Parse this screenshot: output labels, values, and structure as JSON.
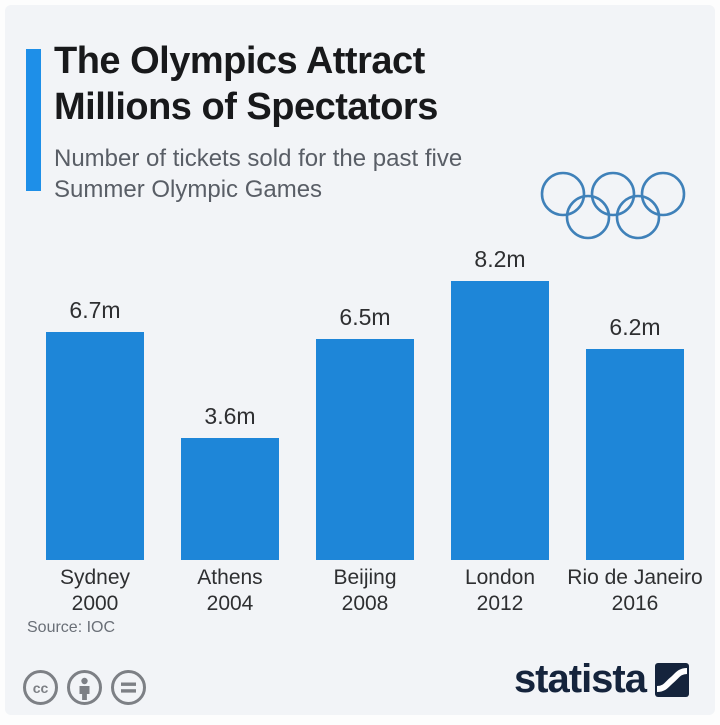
{
  "header": {
    "title_line1": "The Olympics Attract",
    "title_line2": "Millions of Spectators",
    "subtitle_line1": "Number of tickets sold for the past five",
    "subtitle_line2": "Summer Olympic Games",
    "decoration_icon": "olympic-rings-icon"
  },
  "chart_data": {
    "type": "bar",
    "title": "The Olympics Attract Millions of Spectators",
    "subtitle": "Number of tickets sold for the past five Summer Olympic Games",
    "categories": [
      {
        "city": "Sydney",
        "year": "2000"
      },
      {
        "city": "Athens",
        "year": "2004"
      },
      {
        "city": "Beijing",
        "year": "2008"
      },
      {
        "city": "London",
        "year": "2012"
      },
      {
        "city": "Rio de Janeiro",
        "year": "2016"
      }
    ],
    "values": [
      6.7,
      3.6,
      6.5,
      8.2,
      6.2
    ],
    "value_labels": [
      "6.7m",
      "3.6m",
      "6.5m",
      "8.2m",
      "6.2m"
    ],
    "unit": "million tickets sold",
    "ylim": [
      0,
      8.2
    ],
    "grid": "off",
    "axes": "none",
    "data_labels": "above-bars",
    "xlabel": "",
    "ylabel": ""
  },
  "footer": {
    "source": "Source: IOC",
    "license_icons": [
      "creative-commons-icon",
      "attribution-person-icon",
      "no-derivatives-equals-icon"
    ],
    "brand": "statista",
    "brand_mark": "statista-logo-mark"
  },
  "colors": {
    "background": "#f2f4f7",
    "bar": "#1e86d8",
    "accent_bar": "#1e8fe8",
    "rings": "#3f81b9",
    "title_text": "#18191b",
    "subtitle_text": "#595e66",
    "label_text": "#2e2f31",
    "source_text": "#6a6f77",
    "license_gray": "#7d8085",
    "brand_navy": "#15243c"
  }
}
